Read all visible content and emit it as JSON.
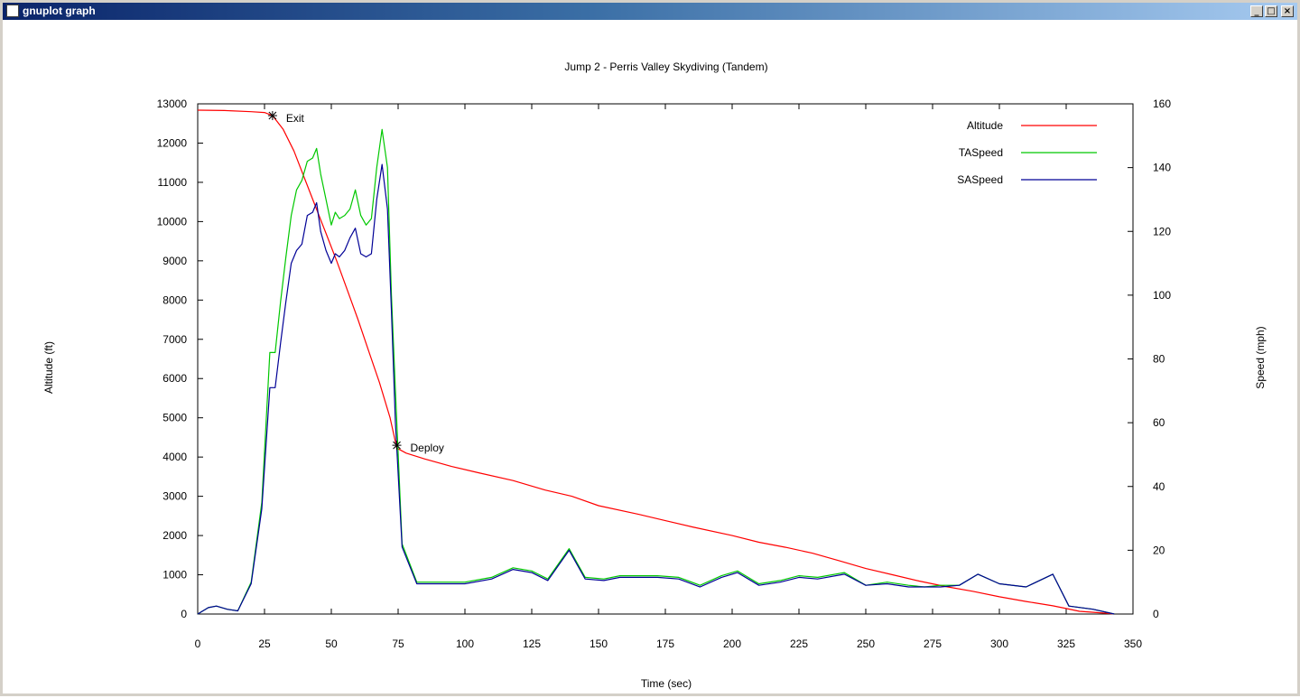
{
  "window": {
    "title": "gnuplot graph",
    "icon": "gnuplot-app-icon",
    "controls": {
      "minimize": "_",
      "maximize": "□",
      "close": "×"
    }
  },
  "chart_data": {
    "type": "line",
    "title": "Jump 2 - Perris Valley Skydiving (Tandem)",
    "xlabel": "Time (sec)",
    "ylabel": "Altitude (ft)",
    "y2label": "Speed (mph)",
    "xlim": [
      0,
      350
    ],
    "ylim": [
      0,
      13000
    ],
    "y2lim": [
      0,
      160
    ],
    "xticks": [
      0,
      25,
      50,
      75,
      100,
      125,
      150,
      175,
      200,
      225,
      250,
      275,
      300,
      325,
      350
    ],
    "yticks": [
      0,
      1000,
      2000,
      3000,
      4000,
      5000,
      6000,
      7000,
      8000,
      9000,
      10000,
      11000,
      12000,
      13000
    ],
    "y2ticks": [
      0,
      20,
      40,
      60,
      80,
      100,
      120,
      140,
      160
    ],
    "grid": false,
    "legend_position": "top-right",
    "series": [
      {
        "name": "Altitude",
        "axis": "y",
        "color": "#ff0000",
        "x": [
          0,
          10,
          20,
          25,
          28,
          32,
          36,
          40,
          44,
          48,
          52,
          56,
          60,
          64,
          68,
          72,
          74.5,
          78,
          85,
          95,
          105,
          118,
          130,
          140,
          150,
          165,
          175,
          185,
          200,
          210,
          220,
          230,
          240,
          250,
          260,
          270,
          280,
          290,
          300,
          310,
          320,
          325,
          330,
          340,
          343
        ],
        "y": [
          12840,
          12830,
          12800,
          12780,
          12700,
          12350,
          11800,
          11100,
          10400,
          9700,
          9000,
          8250,
          7500,
          6700,
          5900,
          5000,
          4230,
          4100,
          3950,
          3760,
          3600,
          3400,
          3160,
          3000,
          2760,
          2540,
          2380,
          2220,
          2000,
          1830,
          1700,
          1550,
          1360,
          1160,
          1000,
          840,
          700,
          580,
          440,
          320,
          210,
          140,
          70,
          20,
          0
        ]
      },
      {
        "name": "TASpeed",
        "axis": "y2",
        "color": "#00c800",
        "x": [
          0,
          4,
          7,
          11,
          15,
          20,
          24,
          27,
          29,
          31,
          33,
          35,
          37,
          39,
          41,
          43,
          44.5,
          46,
          48,
          50,
          51.5,
          53,
          55,
          57,
          59,
          61,
          63,
          65,
          67,
          69,
          71,
          72.5,
          74,
          76.5,
          82,
          90,
          100,
          110,
          118,
          125,
          131,
          139,
          145,
          152,
          158,
          165,
          172,
          180,
          188,
          196,
          202,
          210,
          218,
          225,
          232,
          242,
          250,
          258,
          266,
          272,
          278,
          285,
          292,
          300,
          310,
          320,
          326,
          335,
          343
        ],
        "y": [
          0,
          2,
          2.5,
          1.5,
          1,
          10,
          35,
          82,
          82,
          98,
          112,
          125,
          133,
          136,
          142,
          143,
          146,
          138,
          130,
          122,
          126,
          124,
          125,
          127,
          133,
          125,
          122,
          124,
          140,
          152,
          140,
          100,
          70,
          22,
          10,
          10,
          10,
          11.5,
          14.5,
          13.5,
          11,
          20.5,
          11.5,
          11,
          12,
          12,
          12,
          11.5,
          9,
          12,
          13.5,
          9.5,
          10.5,
          12,
          11.5,
          13,
          9,
          10,
          9,
          8.5,
          9,
          9,
          12.5,
          9.5,
          8.5,
          12.5,
          2.5,
          1.5,
          0
        ]
      },
      {
        "name": "SASpeed",
        "axis": "y2",
        "color": "#000096",
        "x": [
          0,
          4,
          7,
          11,
          15,
          20,
          24,
          27,
          29,
          31,
          33,
          35,
          37,
          39,
          41,
          43,
          44.5,
          46,
          48,
          50,
          51.5,
          53,
          55,
          57,
          59,
          61,
          63,
          65,
          67,
          69,
          71,
          72.5,
          74,
          76.5,
          82,
          90,
          100,
          110,
          118,
          125,
          131,
          139,
          145,
          152,
          158,
          165,
          172,
          180,
          188,
          196,
          202,
          210,
          218,
          225,
          232,
          242,
          250,
          258,
          266,
          272,
          278,
          285,
          292,
          300,
          310,
          320,
          326,
          335,
          343
        ],
        "y": [
          0,
          2,
          2.5,
          1.5,
          1,
          9.5,
          33,
          71,
          71,
          85,
          98,
          110,
          114,
          116,
          125,
          126,
          129,
          120,
          114,
          110,
          113,
          112,
          114,
          118,
          121,
          113,
          112,
          113,
          130,
          141,
          127,
          95,
          60,
          21,
          9.5,
          9.5,
          9.5,
          11,
          14,
          13,
          10.5,
          20,
          11,
          10.5,
          11.5,
          11.5,
          11.5,
          11,
          8.5,
          11.5,
          13,
          9,
          10,
          11.5,
          11,
          12.5,
          9,
          9.5,
          8.5,
          8.5,
          8.5,
          9,
          12.5,
          9.5,
          8.5,
          12.5,
          2.5,
          1.5,
          0
        ]
      }
    ],
    "annotations": [
      {
        "label": "Exit",
        "x": 28,
        "y": 12700,
        "axis": "y"
      },
      {
        "label": "Deploy",
        "x": 74.5,
        "y": 4300,
        "axis": "y"
      }
    ]
  }
}
